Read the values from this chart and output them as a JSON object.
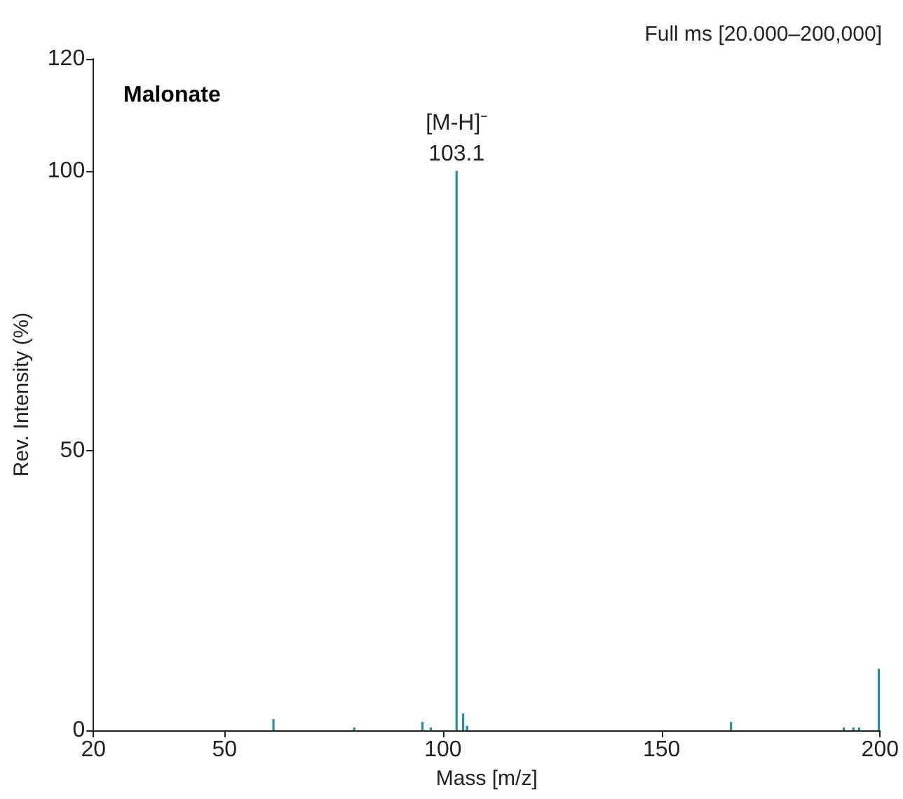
{
  "chart_data": {
    "type": "bar",
    "title": "Full ms [20.000–200,000]",
    "xlabel": "Mass [m/z]",
    "ylabel": "Rev. Intensity (%)",
    "x": [
      61.2,
      79.7,
      95.3,
      97.2,
      103.1,
      104.6,
      105.5,
      165.9,
      191.7,
      193.9,
      195.2,
      199.7
    ],
    "values": [
      2,
      0.5,
      1.5,
      0.5,
      100,
      3,
      0.8,
      1.5,
      0.5,
      0.5,
      0.5,
      11
    ],
    "color": "#2a8ca0",
    "xlim": [
      20,
      200
    ],
    "xticks": [
      20,
      50,
      100,
      150,
      200
    ],
    "ylim": [
      0,
      120
    ],
    "yticks": [
      0,
      50,
      100,
      120
    ],
    "grid": false,
    "annotations": [
      "Malonate",
      {
        "text": "[M-H]⁻",
        "x": 103.1,
        "y": 100
      },
      {
        "text": "103.1",
        "x": 103.1,
        "y": 100
      }
    ]
  }
}
